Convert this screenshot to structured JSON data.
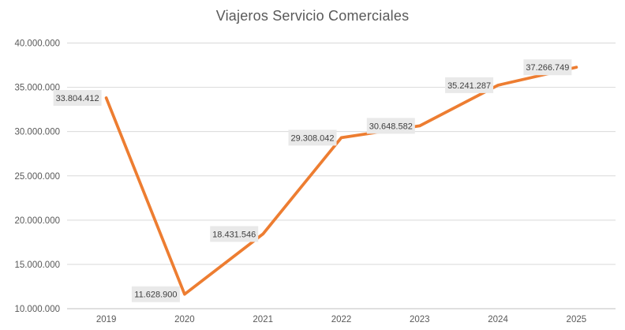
{
  "chart_data": {
    "type": "line",
    "title": "Viajeros Servicio Comerciales",
    "categories": [
      "2019",
      "2020",
      "2021",
      "2022",
      "2023",
      "2024",
      "2025"
    ],
    "series": [
      {
        "name": "Viajeros Servicio Comerciales",
        "values": [
          33804412,
          11628900,
          18431546,
          29308042,
          30648582,
          35241287,
          37266749
        ],
        "labels": [
          "33.804.412",
          "11.628.900",
          "18.431.546",
          "29.308.042",
          "30.648.582",
          "35.241.287",
          "37.266.749"
        ]
      }
    ],
    "y_axis": {
      "min": 10000000,
      "max": 40000000,
      "ticks": [
        {
          "value": 40000000,
          "label": "40.000.000"
        },
        {
          "value": 35000000,
          "label": "35.000.000"
        },
        {
          "value": 30000000,
          "label": "30.000.000"
        },
        {
          "value": 25000000,
          "label": "25.000.000"
        },
        {
          "value": 20000000,
          "label": "20.000.000"
        },
        {
          "value": 15000000,
          "label": "15.000.000"
        },
        {
          "value": 10000000,
          "label": "10.000.000"
        }
      ]
    },
    "grid": true,
    "legend": "none",
    "data_labels_visible": true,
    "markers": "none",
    "colors": {
      "line": "#ED7D31",
      "gridline": "#D9D9D9",
      "axis_line": "#BFBFBF",
      "axis_text": "#595959",
      "title_text": "#595959",
      "data_label_text": "#404040",
      "data_label_bg": "#E9E9E9",
      "background": "#FFFFFF"
    }
  }
}
